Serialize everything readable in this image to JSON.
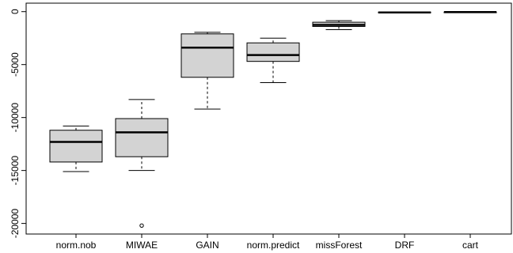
{
  "chart_data": {
    "type": "boxplot",
    "title": "",
    "xlabel": "",
    "ylabel": "",
    "ylim": [
      -21000,
      800
    ],
    "yticks": [
      0,
      -5000,
      -10000,
      -15000,
      -20000
    ],
    "grid": false,
    "colors": {
      "box_fill": "#d3d3d3",
      "stroke": "#000000"
    },
    "categories": [
      "norm.nob",
      "MIWAE",
      "GAIN",
      "norm.predict",
      "missForest",
      "DRF",
      "cart"
    ],
    "boxes": [
      {
        "name": "norm.nob",
        "whisker_low": -15100,
        "q1": -14200,
        "median": -12300,
        "q3": -11200,
        "whisker_high": -10800,
        "outliers": []
      },
      {
        "name": "MIWAE",
        "whisker_low": -15000,
        "q1": -13700,
        "median": -11400,
        "q3": -10100,
        "whisker_high": -8300,
        "outliers": [
          -20200
        ]
      },
      {
        "name": "GAIN",
        "whisker_low": -9200,
        "q1": -6200,
        "median": -3400,
        "q3": -2100,
        "whisker_high": -1950,
        "outliers": []
      },
      {
        "name": "norm.predict",
        "whisker_low": -6700,
        "q1": -4700,
        "median": -4100,
        "q3": -2950,
        "whisker_high": -2500,
        "outliers": []
      },
      {
        "name": "missForest",
        "whisker_low": -1700,
        "q1": -1400,
        "median": -1250,
        "q3": -1000,
        "whisker_high": -850,
        "outliers": []
      },
      {
        "name": "DRF",
        "whisker_low": -120,
        "q1": -100,
        "median": -80,
        "q3": -40,
        "whisker_high": -20,
        "outliers": []
      },
      {
        "name": "cart",
        "whisker_low": -60,
        "q1": -50,
        "median": -40,
        "q3": -30,
        "whisker_high": -20,
        "outliers": []
      }
    ]
  }
}
